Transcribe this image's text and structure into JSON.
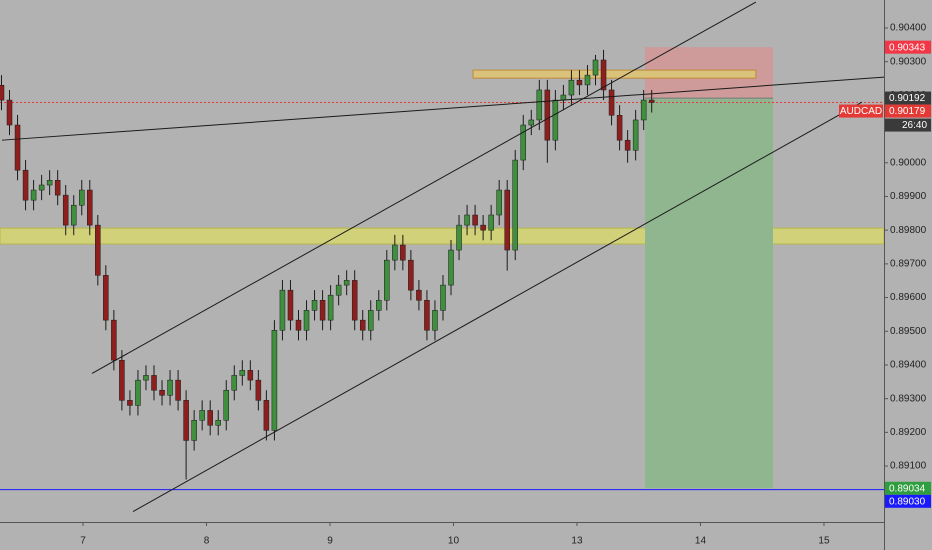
{
  "chart_data": {
    "type": "candlestick",
    "symbol": "AUDCAD",
    "countdown": "26:40",
    "up_color": "#3f8f3f",
    "down_color": "#8e1f1f",
    "wick_color": "#1a1a1a",
    "xlim": [
      0.328,
      7.486
    ],
    "ylim": [
      0.88934,
      0.90483
    ],
    "xticks": [
      {
        "value": 1,
        "label": "7"
      },
      {
        "value": 2,
        "label": "8"
      },
      {
        "value": 3,
        "label": "9"
      },
      {
        "value": 4,
        "label": "10"
      },
      {
        "value": 5,
        "label": "13"
      },
      {
        "value": 6,
        "label": "14"
      },
      {
        "value": 7,
        "label": "15"
      }
    ],
    "yticks": [
      {
        "value": 0.904,
        "label": "0.90400"
      },
      {
        "value": 0.903,
        "label": "0.90300"
      },
      {
        "value": 0.902,
        "label": "0.90200"
      },
      {
        "value": 0.901,
        "label": "0.90100"
      },
      {
        "value": 0.9,
        "label": "0.90000"
      },
      {
        "value": 0.899,
        "label": "0.89900"
      },
      {
        "value": 0.898,
        "label": "0.89800"
      },
      {
        "value": 0.897,
        "label": "0.89700"
      },
      {
        "value": 0.896,
        "label": "0.89600"
      },
      {
        "value": 0.895,
        "label": "0.89500"
      },
      {
        "value": 0.894,
        "label": "0.89400"
      },
      {
        "value": 0.893,
        "label": "0.89300"
      },
      {
        "value": 0.892,
        "label": "0.89200"
      },
      {
        "value": 0.891,
        "label": "0.89100"
      }
    ],
    "x": [
      0.34,
      0.405,
      0.47,
      0.535,
      0.6,
      0.665,
      0.73,
      0.795,
      0.86,
      0.925,
      0.99,
      1.055,
      1.12,
      1.185,
      1.25,
      1.315,
      1.38,
      1.445,
      1.51,
      1.575,
      1.64,
      1.705,
      1.77,
      1.835,
      1.9,
      1.965,
      2.03,
      2.095,
      2.16,
      2.225,
      2.29,
      2.355,
      2.42,
      2.485,
      2.55,
      2.615,
      2.68,
      2.745,
      2.81,
      2.875,
      2.94,
      3.005,
      3.07,
      3.135,
      3.2,
      3.265,
      3.33,
      3.395,
      3.46,
      3.525,
      3.59,
      3.655,
      3.72,
      3.785,
      3.85,
      3.915,
      3.98,
      4.045,
      4.11,
      4.175,
      4.24,
      4.305,
      4.37,
      4.435,
      4.5,
      4.565,
      4.63,
      4.695,
      4.76,
      4.825,
      4.89,
      4.955,
      5.02,
      5.085,
      5.15,
      5.215,
      5.28,
      5.345,
      5.41,
      5.475,
      5.54,
      5.605
    ],
    "open": [
      0.9023,
      0.90186,
      0.90112,
      0.89978,
      0.89889,
      0.89919,
      0.89934,
      0.89948,
      0.89904,
      0.89815,
      0.89874,
      0.89919,
      0.89815,
      0.89666,
      0.89533,
      0.89414,
      0.89295,
      0.8928,
      0.89355,
      0.89369,
      0.89325,
      0.8931,
      0.89355,
      0.89295,
      0.89176,
      0.89236,
      0.89265,
      0.89221,
      0.89236,
      0.89325,
      0.89369,
      0.89384,
      0.89355,
      0.89295,
      0.89206,
      0.89503,
      0.89622,
      0.89533,
      0.89503,
      0.89562,
      0.89592,
      0.89533,
      0.89607,
      0.89637,
      0.89651,
      0.89533,
      0.89503,
      0.89562,
      0.89592,
      0.89711,
      0.89756,
      0.89711,
      0.89622,
      0.89592,
      0.89503,
      0.89562,
      0.89637,
      0.89741,
      0.89815,
      0.89845,
      0.89815,
      0.898,
      0.89845,
      0.89919,
      0.89741,
      0.90008,
      0.90112,
      0.90127,
      0.90216,
      0.90067,
      0.90186,
      0.90201,
      0.90245,
      0.90231,
      0.9026,
      0.90305,
      0.90216,
      0.90141,
      0.90067,
      0.90037,
      0.90127,
      0.90186
    ],
    "high": [
      0.9026,
      0.90216,
      0.90142,
      0.90008,
      0.89949,
      0.89964,
      0.89978,
      0.89978,
      0.89934,
      0.89904,
      0.89949,
      0.89949,
      0.89845,
      0.89696,
      0.89563,
      0.89444,
      0.89325,
      0.89385,
      0.89399,
      0.89399,
      0.89355,
      0.89385,
      0.89385,
      0.89325,
      0.89266,
      0.89295,
      0.89295,
      0.89266,
      0.89355,
      0.89399,
      0.89414,
      0.89414,
      0.89385,
      0.89325,
      0.89533,
      0.89652,
      0.89652,
      0.89563,
      0.89592,
      0.89622,
      0.89622,
      0.89637,
      0.89667,
      0.89681,
      0.89681,
      0.89563,
      0.89592,
      0.89622,
      0.89741,
      0.89786,
      0.89786,
      0.89741,
      0.89652,
      0.89622,
      0.89592,
      0.89667,
      0.89771,
      0.89845,
      0.89875,
      0.89875,
      0.89845,
      0.89875,
      0.89949,
      0.89949,
      0.90038,
      0.90142,
      0.90157,
      0.90246,
      0.90246,
      0.90216,
      0.90231,
      0.90275,
      0.90275,
      0.9029,
      0.9032,
      0.90335,
      0.90246,
      0.90171,
      0.90097,
      0.90157,
      0.90216,
      0.90216
    ],
    "low": [
      0.90156,
      0.90082,
      0.89948,
      0.89859,
      0.89859,
      0.89889,
      0.89904,
      0.89874,
      0.89785,
      0.89785,
      0.89844,
      0.89785,
      0.89636,
      0.89503,
      0.89384,
      0.89265,
      0.8925,
      0.8925,
      0.89325,
      0.89295,
      0.8928,
      0.8928,
      0.89265,
      0.8906,
      0.89146,
      0.89206,
      0.89191,
      0.89191,
      0.89206,
      0.89295,
      0.89339,
      0.89325,
      0.89265,
      0.89176,
      0.89176,
      0.89473,
      0.89503,
      0.89473,
      0.89473,
      0.89532,
      0.89503,
      0.89503,
      0.89577,
      0.89607,
      0.89503,
      0.89473,
      0.89473,
      0.89532,
      0.89562,
      0.89681,
      0.89681,
      0.89592,
      0.89562,
      0.89473,
      0.89473,
      0.89532,
      0.89607,
      0.89711,
      0.89785,
      0.89785,
      0.8977,
      0.8977,
      0.89815,
      0.8968,
      0.89711,
      0.89978,
      0.90082,
      0.90097,
      0.9,
      0.90037,
      0.90156,
      0.90171,
      0.90201,
      0.90201,
      0.9023,
      0.90186,
      0.90111,
      0.90037,
      0.9,
      0.90007,
      0.90097,
      0.90149
    ],
    "close": [
      0.90186,
      0.90112,
      0.89978,
      0.89889,
      0.89919,
      0.89934,
      0.89948,
      0.89904,
      0.89815,
      0.89874,
      0.89919,
      0.89815,
      0.89666,
      0.89533,
      0.89414,
      0.89295,
      0.8928,
      0.89355,
      0.89369,
      0.89325,
      0.8931,
      0.89355,
      0.89295,
      0.89176,
      0.89236,
      0.89265,
      0.89221,
      0.89236,
      0.89325,
      0.89369,
      0.89384,
      0.89355,
      0.89295,
      0.89206,
      0.89503,
      0.89622,
      0.89533,
      0.89503,
      0.89562,
      0.89592,
      0.89533,
      0.89607,
      0.89637,
      0.89651,
      0.89533,
      0.89503,
      0.89562,
      0.89592,
      0.89711,
      0.89756,
      0.89711,
      0.89622,
      0.89592,
      0.89503,
      0.89562,
      0.89637,
      0.89741,
      0.89815,
      0.89845,
      0.89815,
      0.898,
      0.89845,
      0.89919,
      0.89741,
      0.90008,
      0.90112,
      0.90127,
      0.90216,
      0.90067,
      0.90186,
      0.90201,
      0.90245,
      0.90231,
      0.9026,
      0.90305,
      0.90216,
      0.90141,
      0.90067,
      0.90037,
      0.90127,
      0.90186,
      0.90179
    ],
    "zones": [
      {
        "y": [
          0.89759,
          0.89806
        ],
        "color": "#d6d66e",
        "border": "#b8b84a"
      }
    ],
    "boxes": [
      {
        "x": [
          4.158,
          6.449
        ],
        "y": [
          0.90251,
          0.90275
        ],
        "color": "#d9c27a",
        "border": "#c08a3a"
      }
    ],
    "position": {
      "x": [
        5.551,
        6.587
      ],
      "entry": 0.90192,
      "stop": 0.90343,
      "target": 0.89034,
      "stop_color": "#cf9a9a",
      "target_color": "#8fb68f"
    },
    "trend_lines": [
      {
        "x": [
          0.344,
          7.486
        ],
        "y": [
          0.90067,
          0.90254
        ],
        "color": "#1a1a1a"
      },
      {
        "x": [
          1.073,
          6.449
        ],
        "y": [
          0.89375,
          0.90477
        ],
        "color": "#1a1a1a"
      },
      {
        "x": [
          1.405,
          7.308
        ],
        "y": [
          0.88965,
          0.9018
        ],
        "color": "#1a1a1a"
      }
    ],
    "hlines": [
      {
        "value": 0.8903,
        "color": "#1a1aff",
        "style": "solid"
      },
      {
        "value": 0.90179,
        "color": "#e53935",
        "style": "dotted"
      }
    ],
    "price_tags": [
      {
        "value": 0.90343,
        "label": "0.90343",
        "color": "#f23645"
      },
      {
        "value": 0.90192,
        "label": "0.90192",
        "color": "#3a3a3a"
      },
      {
        "value": 0.90179,
        "label": "0.90179",
        "color": "#e53935"
      },
      {
        "value": 0.89034,
        "label": "0.89034",
        "color": "#2e9e3e"
      },
      {
        "value": 0.8903,
        "label": "0.89030",
        "color": "#1a1aff"
      }
    ]
  }
}
